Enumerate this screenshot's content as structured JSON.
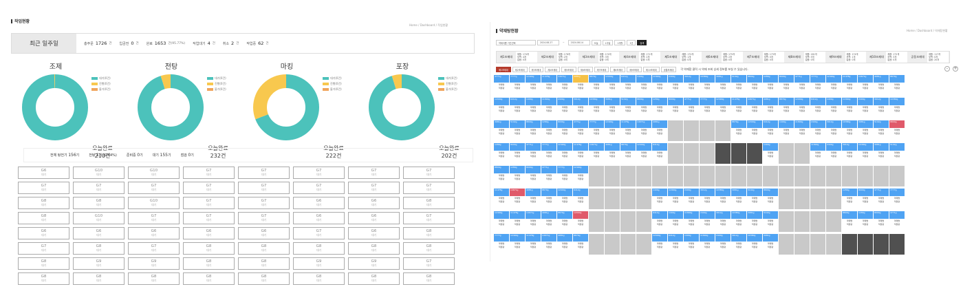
{
  "left": {
    "title": "작업현황",
    "crumb": "Home  /  Dashboard  /  작업현황",
    "week": {
      "label": "최근 일주일",
      "stats": [
        {
          "k": "총주문",
          "v": "1726",
          "u": "건"
        },
        {
          "k": "입금전",
          "v": "0",
          "u": "건"
        },
        {
          "k": "완료",
          "v": "1653",
          "u": "건(95.77%)"
        },
        {
          "k": "작업대기",
          "v": "4",
          "u": "건"
        },
        {
          "k": "취소",
          "v": "2",
          "u": "건"
        },
        {
          "k": "작업중",
          "v": "62",
          "u": "건"
        }
      ]
    },
    "legend": [
      "대기(0건)",
      "진행(0건)",
      "불가(0건)"
    ],
    "donuts": [
      {
        "name": "조제",
        "done_label": "오늘완료",
        "count": "210건",
        "fractions": [
          0.995,
          0.005,
          0
        ]
      },
      {
        "name": "전탕",
        "done_label": "오늘완료",
        "count": "232건",
        "fractions": [
          0.95,
          0.05,
          0
        ]
      },
      {
        "name": "마킹",
        "done_label": "오늘완료",
        "count": "222건",
        "fractions": [
          0.69,
          0.31,
          0
        ]
      },
      {
        "name": "포장",
        "done_label": "오늘완료",
        "count": "202건",
        "fractions": [
          0.95,
          0.05,
          0
        ]
      }
    ],
    "colors": {
      "teal": "#4cc2bb",
      "yellow": "#f8c84e",
      "orange": "#f0a55c"
    },
    "now": [
      {
        "k": "전체 탕전기",
        "v": "156",
        "u": "기"
      },
      {
        "k": "전탕",
        "v": "1",
        "u": "기 (0.64%)"
      },
      {
        "k": "준비중",
        "v": "0",
        "u": "기"
      },
      {
        "k": "대기",
        "v": "155",
        "u": "기"
      },
      {
        "k": "점검",
        "v": "0",
        "u": "기"
      }
    ],
    "cells": [
      "G6",
      "G10",
      "G10",
      "G7",
      "G7",
      "G7",
      "G7",
      "G7",
      "G7",
      "G7",
      "G7",
      "G7",
      "G7",
      "G7",
      "G7",
      "G7",
      "G8",
      "G8",
      "G10",
      "G7",
      "G7",
      "G6",
      "G6",
      "G8",
      "G8",
      "G10",
      "G7",
      "G7",
      "G7",
      "G6",
      "G6",
      "G7",
      "G6",
      "G6",
      "G6",
      "G6",
      "G6",
      "G7",
      "G6",
      "G8",
      "G7",
      "G8",
      "G7",
      "G8",
      "G8",
      "G8",
      "G8",
      "G8",
      "G8",
      "G9",
      "G9",
      "G8",
      "G8",
      "G9",
      "G9",
      "G7",
      "G8",
      "G8",
      "G8",
      "G8",
      "G8",
      "G8",
      "G8",
      "G8"
    ],
    "cell_sub": "대기"
  },
  "right": {
    "title": "약재탕현황",
    "crumb": "Home  /  Dashboard  /  약재탕현황",
    "toolbar": [
      "약재이름 기간선택",
      "2024.08.27",
      "~",
      "2024.08.14",
      "오늘",
      "1주일",
      "1개월",
      "1년",
      "검색"
    ],
    "lines": [
      [
        "제1조제대",
        "제품: 174개",
        "부족: 4개",
        "없음: 0개"
      ],
      [
        "제2조제대",
        "제품: 176개",
        "부족: 2개",
        "없음: 0개"
      ],
      [
        "제3조제대",
        "제품: 174개",
        "부족: 3개",
        "없음: 0개"
      ],
      [
        "제4조제대",
        "제품: 171개",
        "부족: 2개",
        "없음: 0개"
      ],
      [
        "제5조제대",
        "제품: 172개",
        "부족: 1개",
        "없음: 0개"
      ],
      [
        "제6조제대",
        "제품: 175개",
        "부족: 2개",
        "없음: 0개"
      ],
      [
        "제7조제대",
        "제품: 173개",
        "부족: 0개",
        "없음: 0개"
      ],
      [
        "제8조제대",
        "제품: 181개",
        "부족: 5개",
        "없음: 0개"
      ],
      [
        "제9조제대",
        "제품: 174개",
        "부족: 1개",
        "없음: 0개"
      ],
      [
        "제10조제대",
        "제품: 172개",
        "부족: 3개",
        "없음: 0개"
      ],
      [
        "공동조제대",
        "제품: 117개",
        "부족: 0개",
        "없음: 20개"
      ]
    ],
    "tabs": [
      "제1조제대",
      "제2조제대",
      "제3조제대",
      "제4조제대",
      "제5조제대",
      "제6조제대",
      "제7조제대",
      "제8조제대",
      "제9조제대",
      "제10조제대",
      "공통조제대"
    ],
    "note": "각 약재함 클릭 시 약재 조회 상세 정보를 보실 수 있습니다.",
    "ctrl": [
      "-",
      "+"
    ],
    "cell_text": [
      "약재명",
      "적정량"
    ],
    "cell_vals": [
      "4771g",
      "7777g",
      "12490g",
      "11478g",
      "14671g",
      "4981g",
      "8879g",
      "12040g",
      "6412g",
      "1400g",
      "11890g",
      "2400g",
      "3912g",
      "10380g",
      "3981g",
      "5102g",
      "8800g",
      "1280g",
      "8000g"
    ],
    "status": {
      "blue": "#4fa3f3",
      "red": "#e05a6a",
      "yellow": "#f5c146",
      "gray": "#c9c9c9",
      "dark": "#505050"
    }
  }
}
